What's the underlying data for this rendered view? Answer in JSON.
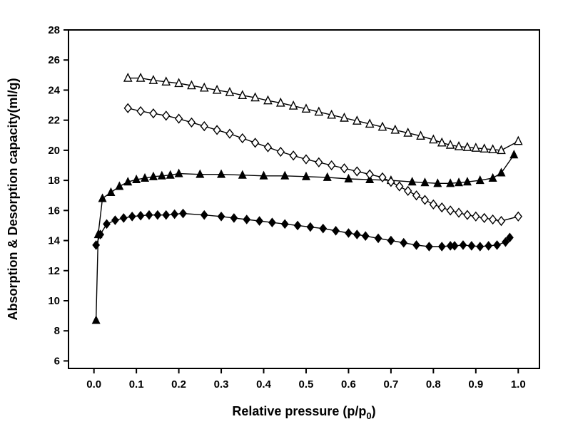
{
  "chart_data": {
    "type": "line",
    "title": "",
    "xlabel": {
      "text": "Relative pressure (p/p",
      "sub": "0",
      "suffix": ")"
    },
    "ylabel": "Absorption & Desorption capacity(ml/g)",
    "xlim": [
      -0.06,
      1.05
    ],
    "ylim": [
      5.5,
      28
    ],
    "xticks": [
      0.0,
      0.1,
      0.2,
      0.3,
      0.4,
      0.5,
      0.6,
      0.7,
      0.8,
      0.9,
      1.0
    ],
    "yticks": [
      6,
      8,
      10,
      12,
      14,
      16,
      18,
      20,
      22,
      24,
      26,
      28
    ],
    "grid": false,
    "legend": "none",
    "line_color": "#000000",
    "series": [
      {
        "name": "triangle-adsorption",
        "marker": "triangle-filled",
        "points": [
          [
            0.005,
            8.7
          ],
          [
            0.01,
            14.4
          ],
          [
            0.02,
            16.8
          ],
          [
            0.04,
            17.2
          ],
          [
            0.06,
            17.6
          ],
          [
            0.08,
            17.9
          ],
          [
            0.1,
            18.05
          ],
          [
            0.12,
            18.15
          ],
          [
            0.14,
            18.25
          ],
          [
            0.16,
            18.3
          ],
          [
            0.18,
            18.35
          ],
          [
            0.2,
            18.45
          ],
          [
            0.25,
            18.4
          ],
          [
            0.3,
            18.4
          ],
          [
            0.35,
            18.35
          ],
          [
            0.4,
            18.3
          ],
          [
            0.45,
            18.3
          ],
          [
            0.5,
            18.25
          ],
          [
            0.55,
            18.2
          ],
          [
            0.6,
            18.1
          ],
          [
            0.65,
            18.05
          ],
          [
            0.7,
            18.0
          ],
          [
            0.75,
            17.9
          ],
          [
            0.78,
            17.85
          ],
          [
            0.81,
            17.8
          ],
          [
            0.84,
            17.8
          ],
          [
            0.86,
            17.85
          ],
          [
            0.88,
            17.9
          ],
          [
            0.91,
            18.0
          ],
          [
            0.94,
            18.15
          ],
          [
            0.96,
            18.5
          ],
          [
            0.99,
            19.7
          ]
        ]
      },
      {
        "name": "triangle-desorption",
        "marker": "triangle-open",
        "points": [
          [
            0.08,
            24.8
          ],
          [
            0.11,
            24.8
          ],
          [
            0.14,
            24.65
          ],
          [
            0.17,
            24.55
          ],
          [
            0.2,
            24.45
          ],
          [
            0.23,
            24.3
          ],
          [
            0.26,
            24.15
          ],
          [
            0.29,
            24.0
          ],
          [
            0.32,
            23.85
          ],
          [
            0.35,
            23.65
          ],
          [
            0.38,
            23.5
          ],
          [
            0.41,
            23.3
          ],
          [
            0.44,
            23.15
          ],
          [
            0.47,
            22.95
          ],
          [
            0.5,
            22.75
          ],
          [
            0.53,
            22.55
          ],
          [
            0.56,
            22.35
          ],
          [
            0.59,
            22.15
          ],
          [
            0.62,
            21.95
          ],
          [
            0.65,
            21.75
          ],
          [
            0.68,
            21.55
          ],
          [
            0.71,
            21.35
          ],
          [
            0.74,
            21.15
          ],
          [
            0.77,
            20.95
          ],
          [
            0.8,
            20.7
          ],
          [
            0.82,
            20.5
          ],
          [
            0.84,
            20.35
          ],
          [
            0.86,
            20.25
          ],
          [
            0.88,
            20.2
          ],
          [
            0.9,
            20.15
          ],
          [
            0.92,
            20.1
          ],
          [
            0.94,
            20.05
          ],
          [
            0.96,
            20.0
          ],
          [
            1.0,
            20.6
          ]
        ]
      },
      {
        "name": "diamond-adsorption",
        "marker": "diamond-filled",
        "points": [
          [
            0.005,
            13.7
          ],
          [
            0.015,
            14.4
          ],
          [
            0.03,
            15.1
          ],
          [
            0.05,
            15.35
          ],
          [
            0.07,
            15.5
          ],
          [
            0.09,
            15.6
          ],
          [
            0.11,
            15.65
          ],
          [
            0.13,
            15.7
          ],
          [
            0.15,
            15.7
          ],
          [
            0.17,
            15.7
          ],
          [
            0.19,
            15.75
          ],
          [
            0.21,
            15.8
          ],
          [
            0.26,
            15.7
          ],
          [
            0.3,
            15.6
          ],
          [
            0.33,
            15.5
          ],
          [
            0.36,
            15.4
          ],
          [
            0.39,
            15.3
          ],
          [
            0.42,
            15.2
          ],
          [
            0.45,
            15.1
          ],
          [
            0.48,
            15.0
          ],
          [
            0.51,
            14.9
          ],
          [
            0.54,
            14.8
          ],
          [
            0.57,
            14.65
          ],
          [
            0.6,
            14.5
          ],
          [
            0.62,
            14.4
          ],
          [
            0.64,
            14.3
          ],
          [
            0.67,
            14.15
          ],
          [
            0.7,
            14.0
          ],
          [
            0.73,
            13.85
          ],
          [
            0.76,
            13.7
          ],
          [
            0.79,
            13.6
          ],
          [
            0.82,
            13.6
          ],
          [
            0.84,
            13.65
          ],
          [
            0.85,
            13.65
          ],
          [
            0.87,
            13.7
          ],
          [
            0.89,
            13.65
          ],
          [
            0.91,
            13.6
          ],
          [
            0.93,
            13.65
          ],
          [
            0.95,
            13.7
          ],
          [
            0.97,
            13.9
          ],
          [
            0.98,
            14.2
          ]
        ]
      },
      {
        "name": "diamond-desorption",
        "marker": "diamond-open",
        "points": [
          [
            0.08,
            22.8
          ],
          [
            0.11,
            22.6
          ],
          [
            0.14,
            22.45
          ],
          [
            0.17,
            22.3
          ],
          [
            0.2,
            22.1
          ],
          [
            0.23,
            21.85
          ],
          [
            0.26,
            21.6
          ],
          [
            0.29,
            21.35
          ],
          [
            0.32,
            21.1
          ],
          [
            0.35,
            20.8
          ],
          [
            0.38,
            20.5
          ],
          [
            0.41,
            20.2
          ],
          [
            0.44,
            19.9
          ],
          [
            0.47,
            19.65
          ],
          [
            0.5,
            19.4
          ],
          [
            0.53,
            19.2
          ],
          [
            0.56,
            19.0
          ],
          [
            0.59,
            18.8
          ],
          [
            0.62,
            18.6
          ],
          [
            0.65,
            18.4
          ],
          [
            0.68,
            18.2
          ],
          [
            0.7,
            17.9
          ],
          [
            0.72,
            17.6
          ],
          [
            0.74,
            17.3
          ],
          [
            0.76,
            17.0
          ],
          [
            0.78,
            16.7
          ],
          [
            0.8,
            16.4
          ],
          [
            0.82,
            16.2
          ],
          [
            0.84,
            16.0
          ],
          [
            0.86,
            15.85
          ],
          [
            0.88,
            15.7
          ],
          [
            0.9,
            15.6
          ],
          [
            0.92,
            15.5
          ],
          [
            0.94,
            15.4
          ],
          [
            0.96,
            15.3
          ],
          [
            1.0,
            15.6
          ]
        ]
      }
    ]
  }
}
